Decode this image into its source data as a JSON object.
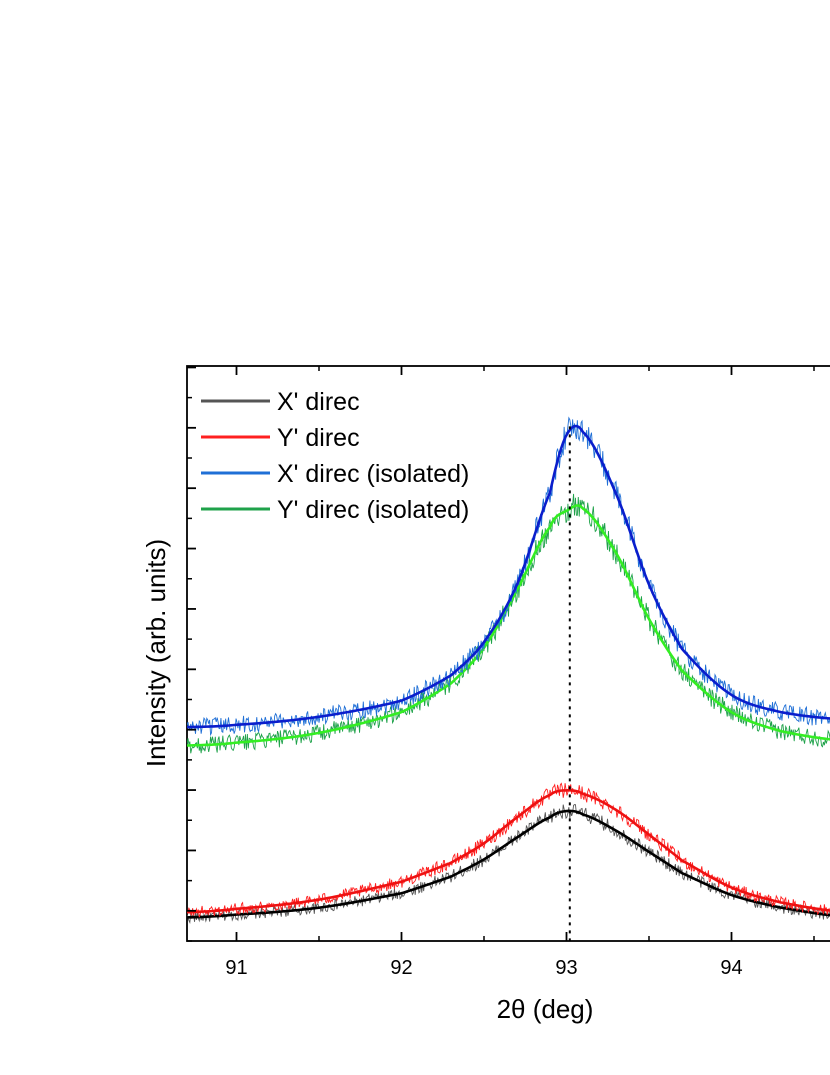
{
  "chart_data": {
    "type": "line",
    "xlabel": "2θ (deg)",
    "ylabel": "Intensity (arb. units)",
    "xlim": [
      90.7,
      94.7
    ],
    "ylim": [
      0,
      1.0
    ],
    "x_ticks": [
      "91",
      "92",
      "93",
      "94"
    ],
    "y_tick_labels": "none",
    "grid": false,
    "legend_position": "top-left",
    "reference_line": {
      "x": 93.02,
      "style": "dotted"
    },
    "series": [
      {
        "name": "X' direc",
        "raw_color": "#555555",
        "fit_color": "#000000",
        "x": [
          90.7,
          91.0,
          91.5,
          92.0,
          92.3,
          92.5,
          92.7,
          92.9,
          93.0,
          93.1,
          93.3,
          93.5,
          93.7,
          94.0,
          94.3,
          94.7
        ],
        "y": [
          0.041,
          0.046,
          0.058,
          0.083,
          0.112,
          0.142,
          0.18,
          0.215,
          0.226,
          0.22,
          0.192,
          0.155,
          0.118,
          0.08,
          0.058,
          0.042
        ]
      },
      {
        "name": "Y' direc",
        "raw_color": "#ff2020",
        "fit_color": "#ee1111",
        "x": [
          90.7,
          91.0,
          91.5,
          92.0,
          92.3,
          92.5,
          92.7,
          92.9,
          93.0,
          93.1,
          93.3,
          93.5,
          93.7,
          94.0,
          94.3,
          94.7
        ],
        "y": [
          0.05,
          0.056,
          0.072,
          0.103,
          0.136,
          0.17,
          0.215,
          0.254,
          0.262,
          0.256,
          0.228,
          0.185,
          0.14,
          0.093,
          0.067,
          0.05
        ]
      },
      {
        "name": "X' direc (isolated)",
        "raw_color": "#1f6fd6",
        "fit_color": "#0a1ecc",
        "x": [
          90.7,
          91.0,
          91.5,
          92.0,
          92.3,
          92.5,
          92.7,
          92.9,
          93.0,
          93.1,
          93.3,
          93.5,
          93.7,
          94.0,
          94.3,
          94.7
        ],
        "y": [
          0.372,
          0.376,
          0.39,
          0.418,
          0.462,
          0.52,
          0.62,
          0.78,
          0.88,
          0.885,
          0.778,
          0.62,
          0.508,
          0.428,
          0.398,
          0.385
        ]
      },
      {
        "name": "Y' direc (isolated)",
        "raw_color": "#1fa24a",
        "fit_color": "#33ee22",
        "x": [
          90.7,
          91.0,
          91.5,
          92.0,
          92.3,
          92.5,
          92.7,
          92.9,
          93.0,
          93.1,
          93.3,
          93.5,
          93.7,
          94.0,
          94.3,
          94.7
        ],
        "y": [
          0.34,
          0.345,
          0.362,
          0.398,
          0.448,
          0.51,
          0.61,
          0.72,
          0.748,
          0.752,
          0.675,
          0.56,
          0.47,
          0.398,
          0.365,
          0.348
        ]
      }
    ]
  }
}
